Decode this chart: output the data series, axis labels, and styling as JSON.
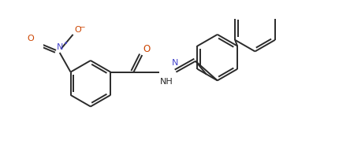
{
  "bg_color": "#ffffff",
  "line_color": "#2a2a2a",
  "text_color": "#2a2a2a",
  "nitrogen_color": "#4444cc",
  "oxygen_color": "#cc4400",
  "line_width": 1.4,
  "font_size": 7.5,
  "fig_width": 4.3,
  "fig_height": 2.07,
  "dpi": 100,
  "xlim": [
    0,
    430
  ],
  "ylim": [
    0,
    207
  ]
}
